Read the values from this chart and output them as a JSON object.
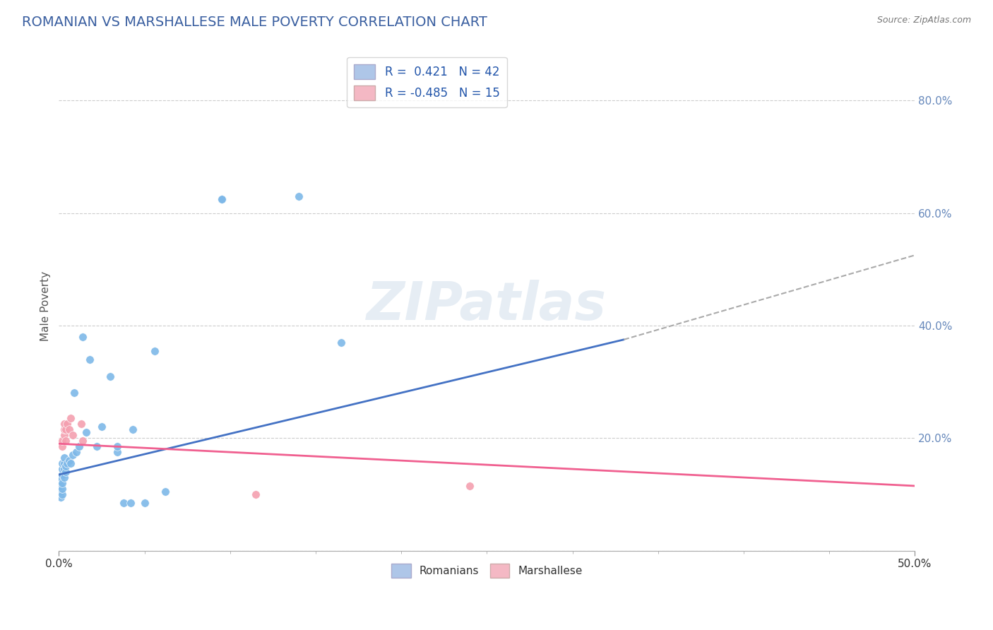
{
  "title": "ROMANIAN VS MARSHALLESE MALE POVERTY CORRELATION CHART",
  "source": "Source: ZipAtlas.com",
  "ylabel": "Male Poverty",
  "yticks_labels": [
    "",
    "20.0%",
    "40.0%",
    "60.0%",
    "80.0%"
  ],
  "ytick_vals": [
    0.0,
    0.2,
    0.4,
    0.6,
    0.8
  ],
  "xlim": [
    0.0,
    0.5
  ],
  "ylim": [
    0.0,
    0.87
  ],
  "title_color": "#3a5fa0",
  "title_fontsize": 14,
  "axis_label_color": "#555555",
  "tick_label_color": "#6688bb",
  "watermark": "ZIPatlas",
  "romanian_scatter": [
    [
      0.001,
      0.095
    ],
    [
      0.001,
      0.105
    ],
    [
      0.001,
      0.115
    ],
    [
      0.001,
      0.13
    ],
    [
      0.002,
      0.1
    ],
    [
      0.002,
      0.11
    ],
    [
      0.002,
      0.12
    ],
    [
      0.002,
      0.135
    ],
    [
      0.002,
      0.145
    ],
    [
      0.002,
      0.155
    ],
    [
      0.003,
      0.13
    ],
    [
      0.003,
      0.145
    ],
    [
      0.003,
      0.155
    ],
    [
      0.003,
      0.165
    ],
    [
      0.004,
      0.14
    ],
    [
      0.004,
      0.15
    ],
    [
      0.005,
      0.155
    ],
    [
      0.006,
      0.16
    ],
    [
      0.007,
      0.155
    ],
    [
      0.008,
      0.17
    ],
    [
      0.009,
      0.28
    ],
    [
      0.01,
      0.175
    ],
    [
      0.012,
      0.185
    ],
    [
      0.014,
      0.38
    ],
    [
      0.016,
      0.21
    ],
    [
      0.018,
      0.34
    ],
    [
      0.022,
      0.185
    ],
    [
      0.025,
      0.22
    ],
    [
      0.03,
      0.31
    ],
    [
      0.034,
      0.175
    ],
    [
      0.034,
      0.185
    ],
    [
      0.038,
      0.085
    ],
    [
      0.042,
      0.085
    ],
    [
      0.043,
      0.215
    ],
    [
      0.05,
      0.085
    ],
    [
      0.056,
      0.355
    ],
    [
      0.062,
      0.105
    ],
    [
      0.095,
      0.625
    ],
    [
      0.095,
      0.625
    ],
    [
      0.14,
      0.63
    ],
    [
      0.165,
      0.37
    ]
  ],
  "marshallese_scatter": [
    [
      0.002,
      0.185
    ],
    [
      0.002,
      0.195
    ],
    [
      0.003,
      0.205
    ],
    [
      0.003,
      0.215
    ],
    [
      0.003,
      0.225
    ],
    [
      0.004,
      0.195
    ],
    [
      0.004,
      0.215
    ],
    [
      0.005,
      0.225
    ],
    [
      0.006,
      0.215
    ],
    [
      0.007,
      0.235
    ],
    [
      0.008,
      0.205
    ],
    [
      0.013,
      0.225
    ],
    [
      0.014,
      0.195
    ],
    [
      0.115,
      0.1
    ],
    [
      0.24,
      0.115
    ]
  ],
  "romanian_line_x": [
    0.0,
    0.33
  ],
  "romanian_line_y": [
    0.135,
    0.375
  ],
  "marshallese_line_x": [
    0.0,
    0.5
  ],
  "marshallese_line_y": [
    0.19,
    0.115
  ],
  "dashed_line_x": [
    0.33,
    0.5
  ],
  "dashed_line_y": [
    0.375,
    0.525
  ],
  "scatter_size": 70,
  "romanian_scatter_color": "#7db8e8",
  "marshallese_scatter_color": "#f4a0b0",
  "romanian_line_color": "#4472c4",
  "marshallese_line_color": "#f06090",
  "dashed_line_color": "#aaaaaa",
  "grid_color": "#cccccc",
  "background_color": "#ffffff",
  "legend_box_color_1": "#aec6e8",
  "legend_box_color_2": "#f4b8c4"
}
